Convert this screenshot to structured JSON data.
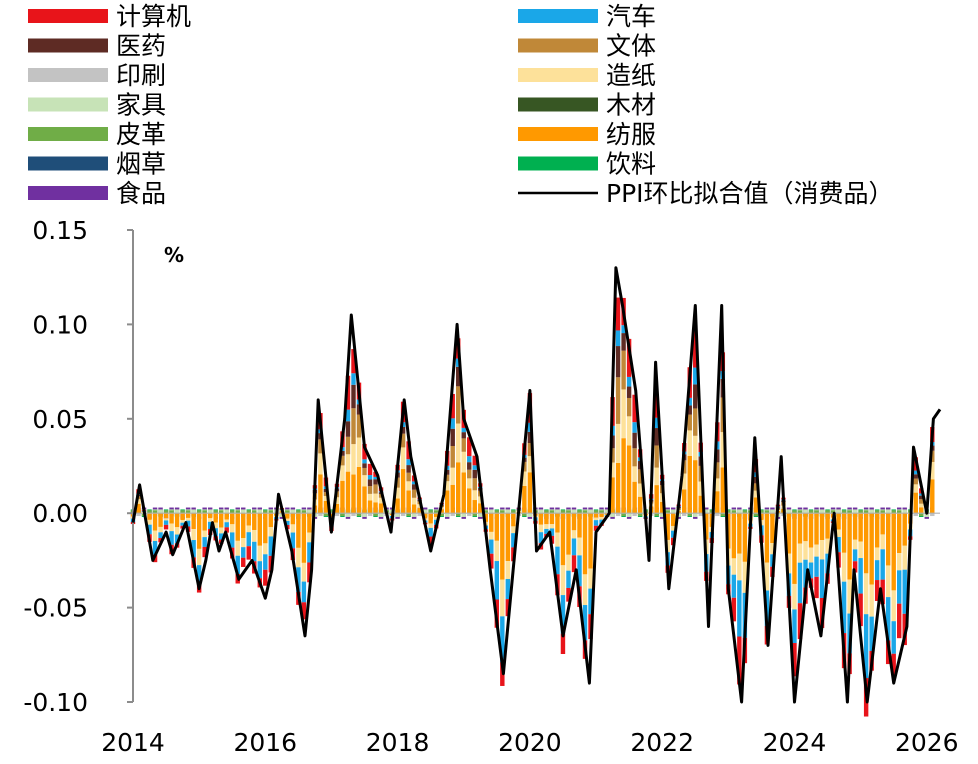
{
  "chart_data": {
    "type": "bar",
    "stacked": true,
    "ylabel": "%",
    "ylim": [
      -0.1,
      0.15
    ],
    "yticks": [
      "0.15",
      "0.10",
      "0.05",
      "0.00",
      "-0.05",
      "-0.10"
    ],
    "ytick_values": [
      0.15,
      0.1,
      0.05,
      0.0,
      -0.05,
      -0.1
    ],
    "xticks": [
      "2014",
      "2016",
      "2018",
      "2020",
      "2022",
      "2024",
      "2026"
    ],
    "xtick_values": [
      2014,
      2016,
      2018,
      2020,
      2022,
      2024,
      2026
    ],
    "x_start": 2014.0,
    "x_end": 2026.2,
    "grid": false,
    "legend_position": "top",
    "legend": [
      {
        "name": "计算机",
        "color": "#e8141a",
        "kind": "bar"
      },
      {
        "name": "汽车",
        "color": "#1aa7e8",
        "kind": "bar"
      },
      {
        "name": "医药",
        "color": "#5e2b24",
        "kind": "bar"
      },
      {
        "name": "文体",
        "color": "#c08838",
        "kind": "bar"
      },
      {
        "name": "印刷",
        "color": "#c3c3c3",
        "kind": "bar"
      },
      {
        "name": "造纸",
        "color": "#fde19a",
        "kind": "bar"
      },
      {
        "name": "家具",
        "color": "#c7e3b7",
        "kind": "bar"
      },
      {
        "name": "木材",
        "color": "#375623",
        "kind": "bar"
      },
      {
        "name": "皮革",
        "color": "#70ad47",
        "kind": "bar"
      },
      {
        "name": "纺服",
        "color": "#ff9900",
        "kind": "bar"
      },
      {
        "name": "烟草",
        "color": "#1f4e79",
        "kind": "bar"
      },
      {
        "name": "饮料",
        "color": "#00b050",
        "kind": "bar"
      },
      {
        "name": "食品",
        "color": "#7030a0",
        "kind": "bar"
      },
      {
        "name": "PPI环比拟合值（消费品）",
        "color": "#000000",
        "kind": "line"
      }
    ],
    "line_series": {
      "name": "PPI环比拟合值（消费品）",
      "points": [
        [
          2014.0,
          -0.005
        ],
        [
          2014.1,
          0.015
        ],
        [
          2014.2,
          -0.005
        ],
        [
          2014.3,
          -0.025
        ],
        [
          2014.5,
          -0.01
        ],
        [
          2014.6,
          -0.022
        ],
        [
          2014.8,
          -0.005
        ],
        [
          2015.0,
          -0.04
        ],
        [
          2015.1,
          -0.025
        ],
        [
          2015.2,
          -0.005
        ],
        [
          2015.3,
          -0.02
        ],
        [
          2015.4,
          -0.01
        ],
        [
          2015.6,
          -0.035
        ],
        [
          2015.8,
          -0.025
        ],
        [
          2016.0,
          -0.045
        ],
        [
          2016.1,
          -0.03
        ],
        [
          2016.2,
          0.01
        ],
        [
          2016.4,
          -0.02
        ],
        [
          2016.6,
          -0.065
        ],
        [
          2016.7,
          -0.03
        ],
        [
          2016.8,
          0.06
        ],
        [
          2017.0,
          -0.01
        ],
        [
          2017.2,
          0.05
        ],
        [
          2017.3,
          0.105
        ],
        [
          2017.4,
          0.07
        ],
        [
          2017.5,
          0.035
        ],
        [
          2017.7,
          0.02
        ],
        [
          2017.9,
          -0.01
        ],
        [
          2018.0,
          0.025
        ],
        [
          2018.1,
          0.06
        ],
        [
          2018.2,
          0.03
        ],
        [
          2018.5,
          -0.02
        ],
        [
          2018.7,
          0.01
        ],
        [
          2018.9,
          0.1
        ],
        [
          2019.0,
          0.05
        ],
        [
          2019.2,
          0.03
        ],
        [
          2019.4,
          -0.03
        ],
        [
          2019.6,
          -0.085
        ],
        [
          2019.8,
          -0.01
        ],
        [
          2020.0,
          0.065
        ],
        [
          2020.1,
          -0.02
        ],
        [
          2020.3,
          -0.01
        ],
        [
          2020.5,
          -0.065
        ],
        [
          2020.7,
          -0.03
        ],
        [
          2020.9,
          -0.09
        ],
        [
          2021.0,
          -0.01
        ],
        [
          2021.2,
          0.0
        ],
        [
          2021.3,
          0.13
        ],
        [
          2021.4,
          0.11
        ],
        [
          2021.6,
          0.065
        ],
        [
          2021.8,
          -0.025
        ],
        [
          2021.9,
          0.08
        ],
        [
          2022.1,
          -0.04
        ],
        [
          2022.3,
          0.02
        ],
        [
          2022.5,
          0.11
        ],
        [
          2022.7,
          -0.06
        ],
        [
          2022.9,
          0.11
        ],
        [
          2023.0,
          -0.04
        ],
        [
          2023.2,
          -0.105
        ],
        [
          2023.4,
          0.04
        ],
        [
          2023.6,
          -0.07
        ],
        [
          2023.8,
          0.03
        ],
        [
          2024.0,
          -0.1
        ],
        [
          2024.2,
          -0.03
        ],
        [
          2024.4,
          -0.065
        ],
        [
          2024.6,
          0.0
        ],
        [
          2024.8,
          -0.1
        ],
        [
          2024.9,
          -0.03
        ],
        [
          2025.1,
          -0.1
        ],
        [
          2025.3,
          -0.04
        ],
        [
          2025.5,
          -0.09
        ],
        [
          2025.7,
          -0.06
        ],
        [
          2025.8,
          0.035
        ],
        [
          2026.0,
          0.0
        ],
        [
          2026.1,
          0.05
        ],
        [
          2026.2,
          0.055
        ]
      ]
    }
  }
}
